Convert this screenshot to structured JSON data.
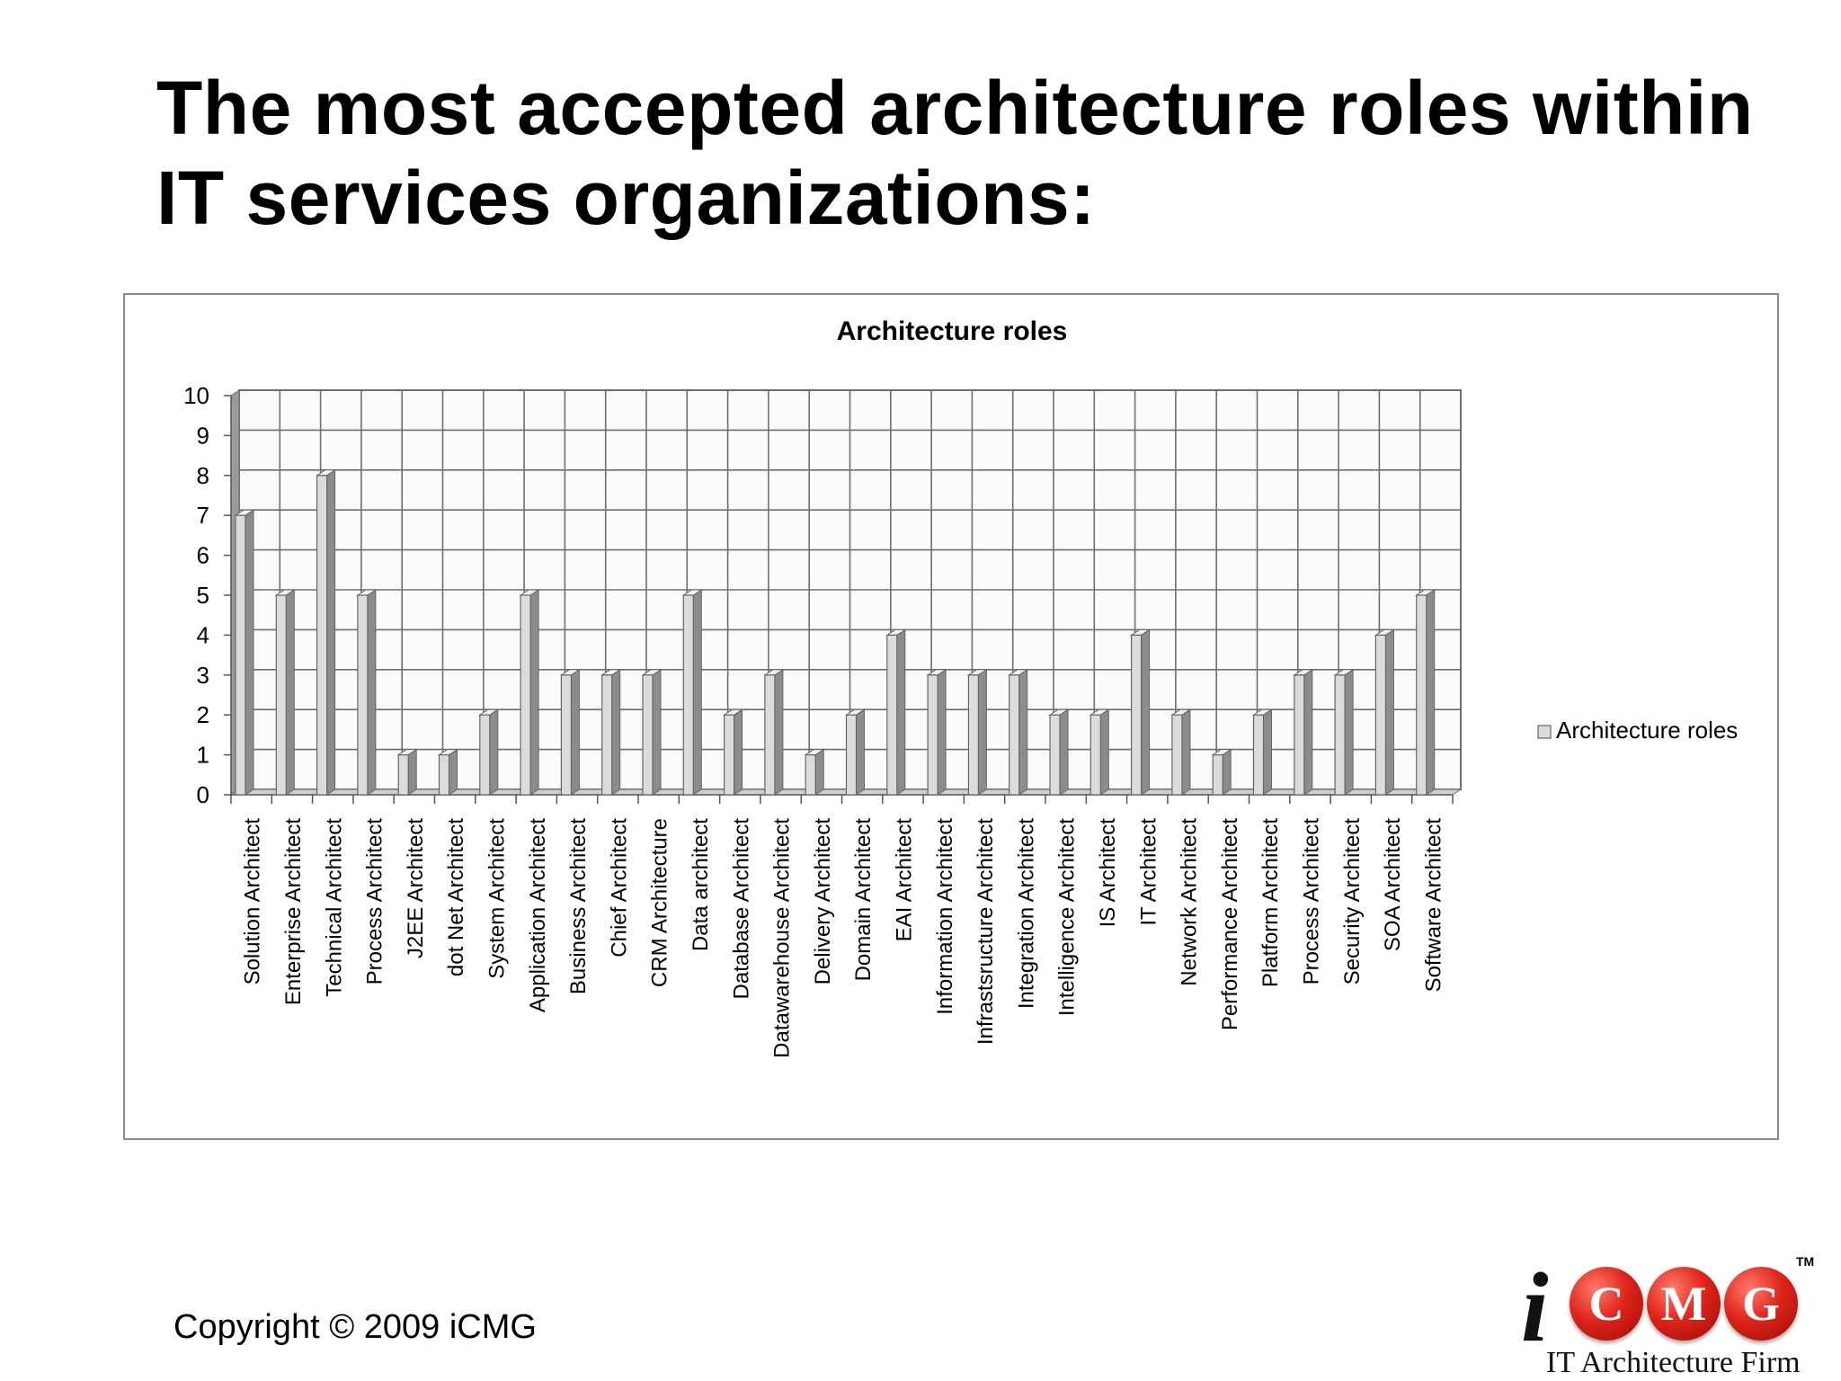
{
  "slide": {
    "title_line1": "The most accepted architecture roles within",
    "title_line2": "IT services organizations:",
    "copyright": "Copyright © 2009 iCMG"
  },
  "logo": {
    "letter_i": "i",
    "letters": [
      "C",
      "M",
      "G"
    ],
    "trademark": "TM",
    "tagline": "IT Architecture Firm",
    "circle_color": "#d9241a"
  },
  "chart_data": {
    "type": "bar",
    "title": "Architecture roles",
    "xlabel": "",
    "ylabel": "",
    "ylim": [
      0,
      10
    ],
    "yticks": [
      0,
      1,
      2,
      3,
      4,
      5,
      6,
      7,
      8,
      9,
      10
    ],
    "grid": true,
    "legend_position": "right",
    "bar_color": "#dcdcdc",
    "categories": [
      "Solution Architect",
      "Enterprise Architect",
      "Technical Architect",
      "Process Architect",
      "J2EE Architect",
      "dot Net Architect",
      "System Architect",
      "Application Architect",
      "Business Architect",
      "Chief Architect",
      "CRM Architecture",
      "Data architect",
      "Database Architect",
      "Datawarehouse Architect",
      "Delivery Architect",
      "Domain Architect",
      "EAI Architect",
      "Information Architect",
      "Infrastsructure Architect",
      "Integration Architect",
      "Intelligence Architect",
      "IS Architect",
      "IT Architect",
      "Network Architect",
      "Performance Architect",
      "Platform Architect",
      "Process Architect",
      "Security Architect",
      "SOA Architect",
      "Software Architect"
    ],
    "series": [
      {
        "name": "Architecture roles",
        "values": [
          7,
          5,
          8,
          5,
          1,
          1,
          2,
          5,
          3,
          3,
          3,
          5,
          2,
          3,
          1,
          2,
          4,
          3,
          3,
          3,
          2,
          2,
          4,
          2,
          1,
          2,
          3,
          3,
          4,
          5
        ]
      }
    ]
  }
}
